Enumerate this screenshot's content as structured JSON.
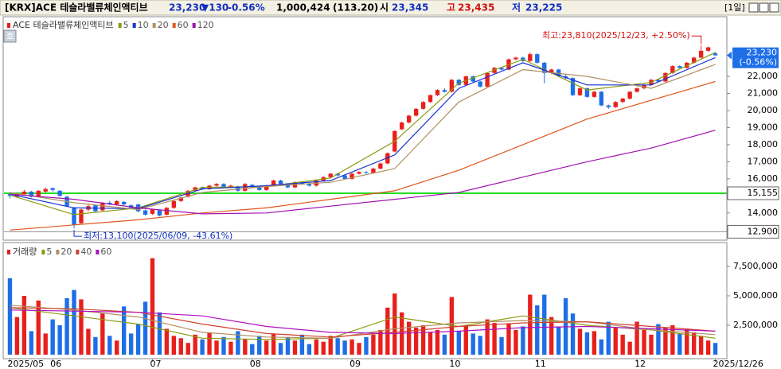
{
  "header": {
    "name": "[KRX]ACE 테슬라밸류체인액티브",
    "price": "23,230",
    "change": "▼130",
    "change_pct": "-0.56%",
    "volume": "1,000,424",
    "volume_ratio": "(113.20)",
    "open_label": "시",
    "open": "23,345",
    "high_label": "고",
    "high": "23,435",
    "low_label": "저",
    "low": "23,225",
    "period": "[1일]",
    "side_button": "호"
  },
  "chart_data": [
    {
      "type": "candlestick",
      "name": "ACE 테슬라밸류체인액티브",
      "legend_color": "#e02020",
      "up_color": "#e8201c",
      "down_color": "#1e6ee8",
      "categories": [
        "2025/05",
        null,
        null,
        null,
        null,
        null,
        "06",
        null,
        null,
        null,
        null,
        null,
        null,
        null,
        null,
        null,
        null,
        null,
        null,
        null,
        "07",
        null,
        null,
        null,
        null,
        null,
        null,
        null,
        null,
        null,
        null,
        null,
        null,
        null,
        "08",
        null,
        null,
        null,
        null,
        null,
        null,
        null,
        null,
        null,
        null,
        null,
        null,
        null,
        "09",
        null,
        null,
        null,
        null,
        null,
        null,
        null,
        null,
        null,
        null,
        null,
        null,
        null,
        "10",
        null,
        null,
        null,
        null,
        null,
        null,
        null,
        null,
        null,
        null,
        null,
        "11",
        null,
        null,
        null,
        null,
        null,
        null,
        null,
        null,
        null,
        null,
        null,
        null,
        null,
        "12",
        null,
        null,
        null,
        null,
        null,
        null,
        null,
        null,
        null,
        null,
        "2025/12/26"
      ],
      "ohlc": [
        [
          15100,
          15200,
          14850,
          15000
        ],
        [
          14950,
          15200,
          14900,
          15100
        ],
        [
          15100,
          15350,
          15050,
          15250
        ],
        [
          15250,
          15300,
          14900,
          14950
        ],
        [
          14950,
          15350,
          14900,
          15300
        ],
        [
          15250,
          15500,
          15200,
          15400
        ],
        [
          15450,
          15500,
          15250,
          15350
        ],
        [
          15300,
          15350,
          14950,
          15000
        ],
        [
          14950,
          15000,
          14350,
          14400
        ],
        [
          14300,
          14350,
          13100,
          13300
        ],
        [
          13400,
          14250,
          13350,
          14200
        ],
        [
          14200,
          14500,
          14100,
          14400
        ],
        [
          14450,
          14500,
          14050,
          14100
        ],
        [
          14150,
          14650,
          14100,
          14600
        ],
        [
          14600,
          14700,
          14450,
          14500
        ],
        [
          14500,
          14750,
          14450,
          14700
        ],
        [
          14650,
          14700,
          14450,
          14500
        ],
        [
          14450,
          14500,
          14250,
          14300
        ],
        [
          14500,
          14550,
          14050,
          14100
        ],
        [
          14150,
          14200,
          13850,
          13900
        ],
        [
          13950,
          14250,
          13900,
          14200
        ],
        [
          14150,
          14200,
          13800,
          13850
        ],
        [
          13900,
          14350,
          13850,
          14300
        ],
        [
          14300,
          14750,
          14250,
          14700
        ],
        [
          14700,
          14950,
          14650,
          14900
        ],
        [
          14950,
          15350,
          14900,
          15300
        ],
        [
          15300,
          15550,
          15250,
          15500
        ],
        [
          15500,
          15550,
          15350,
          15400
        ],
        [
          15400,
          15650,
          15350,
          15600
        ],
        [
          15600,
          15750,
          15550,
          15700
        ],
        [
          15700,
          15750,
          15450,
          15500
        ],
        [
          15500,
          15650,
          15450,
          15600
        ],
        [
          15550,
          15600,
          15250,
          15300
        ],
        [
          15300,
          15750,
          15250,
          15700
        ],
        [
          15650,
          15700,
          15450,
          15500
        ],
        [
          15500,
          15550,
          15300,
          15350
        ],
        [
          15350,
          15650,
          15300,
          15600
        ],
        [
          15600,
          15950,
          15550,
          15900
        ],
        [
          15900,
          15950,
          15650,
          15700
        ],
        [
          15700,
          15750,
          15450,
          15500
        ],
        [
          15500,
          15850,
          15450,
          15800
        ],
        [
          15800,
          15850,
          15650,
          15700
        ],
        [
          15700,
          15750,
          15550,
          15600
        ],
        [
          15600,
          15950,
          15550,
          15900
        ],
        [
          15900,
          16150,
          15850,
          16100
        ],
        [
          16100,
          16350,
          16050,
          16300
        ],
        [
          16300,
          16350,
          16150,
          16200
        ],
        [
          16200,
          16250,
          15950,
          16000
        ],
        [
          16000,
          16350,
          15950,
          16300
        ],
        [
          16300,
          16450,
          16250,
          16400
        ],
        [
          16400,
          16450,
          16300,
          16350
        ],
        [
          16350,
          16650,
          16300,
          16600
        ],
        [
          16600,
          16950,
          16550,
          16900
        ],
        [
          16900,
          17550,
          16850,
          17500
        ],
        [
          17600,
          18850,
          17550,
          18800
        ],
        [
          18900,
          19350,
          18850,
          19300
        ],
        [
          19300,
          19750,
          19250,
          19700
        ],
        [
          19700,
          20150,
          19650,
          20100
        ],
        [
          20100,
          20550,
          20050,
          20500
        ],
        [
          20500,
          20950,
          20450,
          20900
        ],
        [
          20900,
          21250,
          20850,
          21200
        ],
        [
          21200,
          21300,
          21050,
          21100
        ],
        [
          21100,
          21850,
          21050,
          21800
        ],
        [
          21800,
          21850,
          21450,
          21500
        ],
        [
          21500,
          22050,
          21450,
          22000
        ],
        [
          22000,
          22050,
          21650,
          21700
        ],
        [
          21700,
          21750,
          21350,
          21400
        ],
        [
          21400,
          22250,
          21350,
          22200
        ],
        [
          22200,
          22550,
          22150,
          22500
        ],
        [
          22500,
          22550,
          22350,
          22400
        ],
        [
          22400,
          23050,
          22350,
          23000
        ],
        [
          23000,
          23150,
          22950,
          23100
        ],
        [
          23100,
          23150,
          22850,
          22900
        ],
        [
          22900,
          23400,
          22850,
          23300
        ],
        [
          23300,
          23350,
          22750,
          22800
        ],
        [
          22800,
          22850,
          21600,
          22200
        ],
        [
          22200,
          22450,
          22150,
          22400
        ],
        [
          22400,
          22450,
          21950,
          22000
        ],
        [
          22000,
          22100,
          21850,
          21900
        ],
        [
          21900,
          21950,
          20850,
          20900
        ],
        [
          20900,
          21350,
          20850,
          21300
        ],
        [
          21300,
          21350,
          20750,
          20800
        ],
        [
          20800,
          21150,
          20750,
          21100
        ],
        [
          21100,
          21150,
          20250,
          20300
        ],
        [
          20300,
          20350,
          20100,
          20200
        ],
        [
          20200,
          20550,
          20150,
          20500
        ],
        [
          20500,
          20750,
          20450,
          20700
        ],
        [
          20700,
          21150,
          20650,
          21100
        ],
        [
          21100,
          21350,
          21050,
          21300
        ],
        [
          21300,
          21550,
          21250,
          21500
        ],
        [
          21500,
          21850,
          21450,
          21800
        ],
        [
          21800,
          21850,
          21650,
          21700
        ],
        [
          21700,
          22250,
          21650,
          22200
        ],
        [
          22200,
          22650,
          22150,
          22600
        ],
        [
          22600,
          22650,
          22450,
          22500
        ],
        [
          22500,
          22850,
          22450,
          22800
        ],
        [
          22800,
          23150,
          22750,
          23100
        ],
        [
          23100,
          23810,
          23050,
          23500
        ],
        [
          23500,
          23750,
          23450,
          23700
        ],
        [
          23345,
          23435,
          23225,
          23230
        ]
      ],
      "ylim": [
        12500,
        25450
      ],
      "yticks": [
        {
          "value": 14000,
          "label": "14,000"
        },
        {
          "value": 16000,
          "label": "16,000"
        },
        {
          "value": 17000,
          "label": "17,000"
        },
        {
          "value": 18000,
          "label": "18,000"
        },
        {
          "value": 19000,
          "label": "19,000"
        },
        {
          "value": 20000,
          "label": "20,000"
        },
        {
          "value": 21000,
          "label": "21,000"
        },
        {
          "value": 22000,
          "label": "22,000"
        }
      ],
      "ma_x": [
        0,
        9,
        18,
        27,
        36,
        45,
        54,
        63,
        72,
        81,
        90,
        99
      ],
      "moving_averages": [
        {
          "name": "5",
          "color": "#8c9a10",
          "values": [
            15050,
            13900,
            14300,
            15500,
            15550,
            16050,
            18200,
            21600,
            23000,
            21200,
            21650,
            23400
          ]
        },
        {
          "name": "10",
          "color": "#1530d0",
          "values": [
            15100,
            14300,
            14250,
            15400,
            15600,
            15900,
            17400,
            21300,
            22800,
            21500,
            21500,
            23100
          ]
        },
        {
          "name": "20",
          "color": "#b09060",
          "values": [
            15200,
            14600,
            14200,
            15200,
            15550,
            15800,
            16600,
            20500,
            22400,
            22000,
            21300,
            22700
          ]
        },
        {
          "name": "60",
          "color": "#e0541c",
          "values": [
            13000,
            13300,
            13600,
            14000,
            14300,
            14800,
            15300,
            16500,
            18000,
            19500,
            20600,
            21700
          ]
        },
        {
          "name": "120",
          "color": "#a010b0",
          "values": [
            15100,
            14800,
            14300,
            13950,
            14000,
            14400,
            14800,
            15200,
            16100,
            17000,
            17800,
            18850
          ]
        }
      ],
      "high_note": "최고:23,810(2025/12/23, +2.50%)",
      "low_note": "최저:13,100(2025/06/09, -43.61%)",
      "reference_lines": [
        {
          "value": 15155,
          "label": "15,155",
          "color": "#22dd22"
        },
        {
          "value": 12900,
          "label": "12,900",
          "color": "#909090"
        }
      ],
      "last_price": {
        "value": 23230,
        "label": "23,230",
        "change": "(-0.56%)",
        "color": "#1e6ee8"
      }
    },
    {
      "type": "volume",
      "name": "거래량",
      "legend_color": "#e02020",
      "values": [
        6500000,
        3200000,
        5000000,
        2000000,
        4600000,
        1800000,
        3000000,
        2500000,
        4800000,
        5500000,
        4700000,
        2200000,
        1500000,
        3500000,
        1600000,
        1200000,
        4100000,
        1800000,
        2600000,
        4500000,
        8200000,
        3600000,
        2200000,
        1600000,
        1400000,
        1000000,
        1700000,
        1300000,
        1900000,
        1200000,
        1500000,
        1100000,
        2000000,
        1300000,
        900000,
        1600000,
        1200000,
        1800000,
        1000000,
        1500000,
        1200000,
        1700000,
        900000,
        1300000,
        1100000,
        1600000,
        1400000,
        1200000,
        1300000,
        1000000,
        1500000,
        1700000,
        2100000,
        4000000,
        5200000,
        3600000,
        2800000,
        2300000,
        2500000,
        1900000,
        2100000,
        1700000,
        4900000,
        2000000,
        2500000,
        1800000,
        1600000,
        3000000,
        2700000,
        1500000,
        2600000,
        2100000,
        2400000,
        5100000,
        4200000,
        5100000,
        3200000,
        2400000,
        4800000,
        3500000,
        2200000,
        1900000,
        2000000,
        1300000,
        2800000,
        2300000,
        1700000,
        1100000,
        2800000,
        2100000,
        1700000,
        2600000,
        2300000,
        2500000,
        1800000,
        2200000,
        1900000,
        1600000,
        1200000,
        1000000
      ],
      "ylim": [
        0,
        9190000
      ],
      "yticks": [
        {
          "value": 2500000,
          "label": "2,500,000"
        },
        {
          "value": 5000000,
          "label": "5,000,000"
        },
        {
          "value": 7500000,
          "label": "7,500,000"
        }
      ],
      "ma_x": [
        0,
        9,
        18,
        27,
        36,
        45,
        54,
        63,
        72,
        81,
        90,
        99
      ],
      "moving_averages": [
        {
          "name": "5",
          "color": "#8c9a10",
          "values": [
            4000000,
            3300000,
            2600000,
            1400000,
            1300000,
            1400000,
            3200000,
            2400000,
            3300000,
            2500000,
            2100000,
            1400000
          ]
        },
        {
          "name": "20",
          "color": "#b09060",
          "values": [
            4200000,
            3800000,
            3200000,
            1900000,
            1500000,
            1400000,
            2200000,
            2700000,
            2900000,
            2800000,
            2100000,
            1700000
          ]
        },
        {
          "name": "40",
          "color": "#d04030",
          "values": [
            4000000,
            3900000,
            3600000,
            2600000,
            1800000,
            1500000,
            1900000,
            2400000,
            2700000,
            2800000,
            2400000,
            2000000
          ]
        },
        {
          "name": "60",
          "color": "#b010c0",
          "values": [
            3800000,
            3700000,
            3600000,
            3300000,
            2400000,
            1900000,
            1800000,
            2000000,
            2300000,
            2400000,
            2200000,
            2000000
          ]
        }
      ]
    }
  ]
}
